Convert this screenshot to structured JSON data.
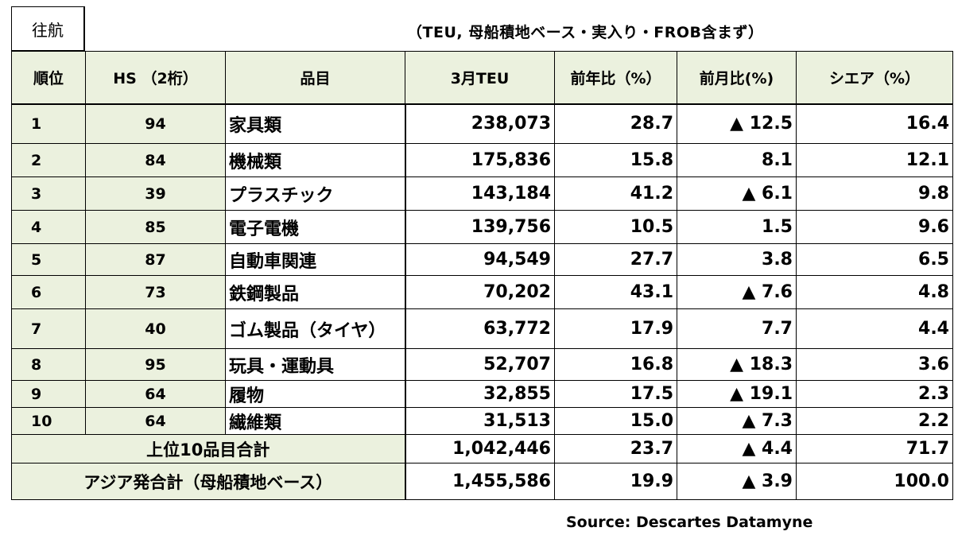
{
  "tag": "往航",
  "subtitle": "（TEU, 母船積地ベース・実入り・FROB含まず）",
  "headers": [
    "順位",
    "HS （2桁）",
    "品目",
    "3月TEU",
    "前年比（%）",
    "前月比(%)",
    "シエア（%）"
  ],
  "rows": [
    {
      "rank": "1",
      "hs": "94",
      "name": "家具類",
      "teu": "238,073",
      "yoy": "28.7",
      "mom": "▲ 12.5",
      "share": "16.4"
    },
    {
      "rank": "2",
      "hs": "84",
      "name": "機械類",
      "teu": "175,836",
      "yoy": "15.8",
      "mom": "8.1",
      "share": "12.1"
    },
    {
      "rank": "3",
      "hs": "39",
      "name": "プラスチック",
      "teu": "143,184",
      "yoy": "41.2",
      "mom": "▲ 6.1",
      "share": "9.8"
    },
    {
      "rank": "4",
      "hs": "85",
      "name": "電子電機",
      "teu": "139,756",
      "yoy": "10.5",
      "mom": "1.5",
      "share": "9.6"
    },
    {
      "rank": "5",
      "hs": "87",
      "name": "自動車関連",
      "teu": "94,549",
      "yoy": "27.7",
      "mom": "3.8",
      "share": "6.5"
    },
    {
      "rank": "6",
      "hs": "73",
      "name": "鉄鋼製品",
      "teu": "70,202",
      "yoy": "43.1",
      "mom": "▲ 7.6",
      "share": "4.8"
    },
    {
      "rank": "7",
      "hs": "40",
      "name": "ゴム製品（タイヤ）",
      "teu": "63,772",
      "yoy": "17.9",
      "mom": "7.7",
      "share": "4.4"
    },
    {
      "rank": "8",
      "hs": "95",
      "name": "玩具・運動具",
      "teu": "52,707",
      "yoy": "16.8",
      "mom": "▲ 18.3",
      "share": "3.6"
    },
    {
      "rank": "9",
      "hs": "64",
      "name": "履物",
      "teu": "32,855",
      "yoy": "17.5",
      "mom": "▲ 19.1",
      "share": "2.3"
    },
    {
      "rank": "10",
      "hs": "64",
      "name": "繊維類",
      "teu": "31,513",
      "yoy": "15.0",
      "mom": "▲ 7.3",
      "share": "2.2"
    }
  ],
  "totals": [
    {
      "label": "上位10品目合計",
      "teu": "1,042,446",
      "yoy": "23.7",
      "mom": "▲ 4.4",
      "share": "71.7"
    },
    {
      "label": "アジア発合計（母船積地ベース）",
      "teu": "1,455,586",
      "yoy": "19.9",
      "mom": "▲ 3.9",
      "share": "100.0"
    }
  ],
  "source": "Source: Descartes Datamyne"
}
